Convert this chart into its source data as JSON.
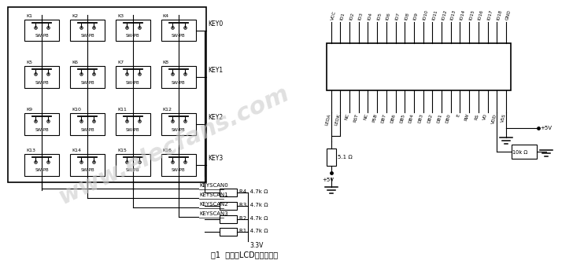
{
  "bg_color": "#ffffff",
  "fig_width": 7.42,
  "fig_height": 3.36,
  "title": "图1  键盘和LCD接口电路图",
  "watermark": "www.elecfans.com",
  "sw_labels": [
    "K1",
    "K2",
    "K3",
    "K4",
    "K5",
    "K6",
    "K7",
    "K8",
    "K9",
    "K10",
    "K11",
    "K12",
    "K13",
    "K14",
    "K15",
    "K16"
  ],
  "key_labels": [
    "KEY0",
    "KEY1",
    "KEY2",
    "KEY3"
  ],
  "resistor_labels": [
    "R4  4.7k Ω",
    "R3  4.7k Ω",
    "R2  4.7k Ω",
    "R1  4.7k Ω"
  ],
  "keyscan_labels": [
    "KEYSCAN0",
    "KEYSCAN1",
    "KEYSCAN2",
    "KEYSCAN3"
  ],
  "lcd_top_pins": [
    "VCC",
    "IO1",
    "IO2",
    "IO3",
    "IO4",
    "IO5",
    "IO6",
    "IO7",
    "IO8",
    "IO9",
    "IO10",
    "IO11",
    "IO12",
    "IO13",
    "IO14",
    "IO15",
    "IO16",
    "IO17",
    "IO18",
    "GND"
  ],
  "lcd_bot_pins": [
    "LEDA",
    "LEDK",
    "NC",
    "RST",
    "NC",
    "PSB",
    "DB7",
    "DB6",
    "DB5",
    "DB4",
    "DB3",
    "DB2",
    "DB1",
    "DB0",
    "E",
    "RW",
    "RS",
    "VO",
    "VDD",
    "VSS"
  ],
  "voltage_5v": "+5V",
  "voltage_33v": "3.3V",
  "resistor_5v": "5.1 Ω",
  "resistor_10k": "10k Ω"
}
